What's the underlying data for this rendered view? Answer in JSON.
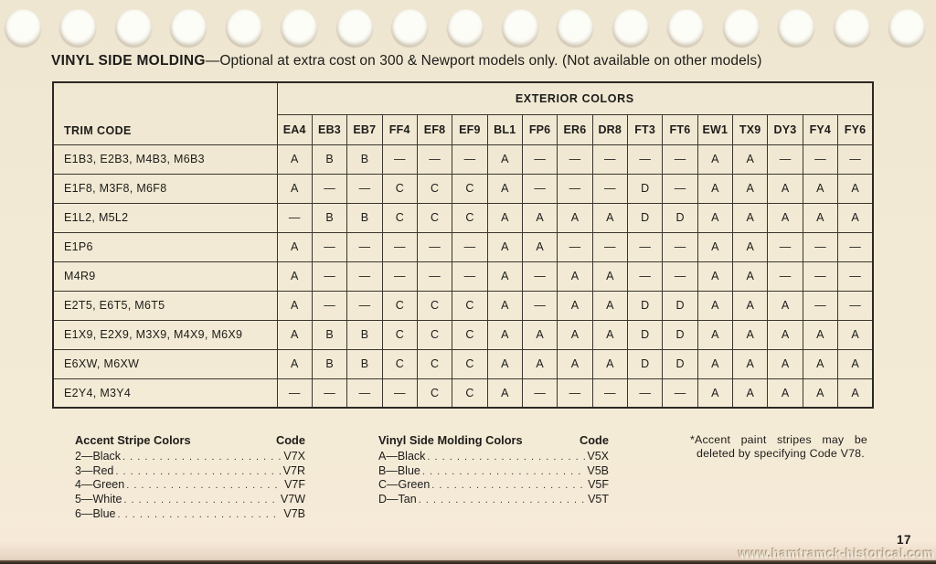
{
  "title": {
    "heading": "VINYL SIDE MOLDING",
    "rest": "—Optional at extra cost on 300 & Newport models only. (Not available on other models)"
  },
  "table": {
    "corner_header": "TRIM CODE",
    "group_header": "EXTERIOR COLORS",
    "columns": [
      "EA4",
      "EB3",
      "EB7",
      "FF4",
      "EF8",
      "EF9",
      "BL1",
      "FP6",
      "ER6",
      "DR8",
      "FT3",
      "FT6",
      "EW1",
      "TX9",
      "DY3",
      "FY4",
      "FY6"
    ],
    "rows": [
      {
        "trim": "E1B3, E2B3, M4B3, M6B3",
        "values": [
          "A",
          "B",
          "B",
          "—",
          "—",
          "—",
          "A",
          "—",
          "—",
          "—",
          "—",
          "—",
          "A",
          "A",
          "—",
          "—",
          "—"
        ]
      },
      {
        "trim": "E1F8, M3F8, M6F8",
        "values": [
          "A",
          "—",
          "—",
          "C",
          "C",
          "C",
          "A",
          "—",
          "—",
          "—",
          "D",
          "—",
          "A",
          "A",
          "A",
          "A",
          "A"
        ]
      },
      {
        "trim": "E1L2, M5L2",
        "values": [
          "—",
          "B",
          "B",
          "C",
          "C",
          "C",
          "A",
          "A",
          "A",
          "A",
          "D",
          "D",
          "A",
          "A",
          "A",
          "A",
          "A"
        ]
      },
      {
        "trim": "E1P6",
        "values": [
          "A",
          "—",
          "—",
          "—",
          "—",
          "—",
          "A",
          "A",
          "—",
          "—",
          "—",
          "—",
          "A",
          "A",
          "—",
          "—",
          "—"
        ]
      },
      {
        "trim": "M4R9",
        "values": [
          "A",
          "—",
          "—",
          "—",
          "—",
          "—",
          "A",
          "—",
          "A",
          "A",
          "—",
          "—",
          "A",
          "A",
          "—",
          "—",
          "—"
        ]
      },
      {
        "trim": "E2T5, E6T5, M6T5",
        "values": [
          "A",
          "—",
          "—",
          "C",
          "C",
          "C",
          "A",
          "—",
          "A",
          "A",
          "D",
          "D",
          "A",
          "A",
          "A",
          "—",
          "—"
        ]
      },
      {
        "trim": "E1X9, E2X9, M3X9, M4X9, M6X9",
        "values": [
          "A",
          "B",
          "B",
          "C",
          "C",
          "C",
          "A",
          "A",
          "A",
          "A",
          "D",
          "D",
          "A",
          "A",
          "A",
          "A",
          "A"
        ]
      },
      {
        "trim": "E6XW, M6XW",
        "values": [
          "A",
          "B",
          "B",
          "C",
          "C",
          "C",
          "A",
          "A",
          "A",
          "A",
          "D",
          "D",
          "A",
          "A",
          "A",
          "A",
          "A"
        ]
      },
      {
        "trim": "E2Y4, M3Y4",
        "values": [
          "—",
          "—",
          "—",
          "—",
          "C",
          "C",
          "A",
          "—",
          "—",
          "—",
          "—",
          "—",
          "A",
          "A",
          "A",
          "A",
          "A"
        ]
      }
    ]
  },
  "legends": [
    {
      "title": "Accent Stripe Colors",
      "code_header": "Code",
      "items": [
        {
          "name": "2—Black",
          "code": "V7X"
        },
        {
          "name": "3—Red",
          "code": "V7R"
        },
        {
          "name": "4—Green",
          "code": "V7F"
        },
        {
          "name": "5—White",
          "code": "V7W"
        },
        {
          "name": "6—Blue",
          "code": "V7B"
        }
      ]
    },
    {
      "title": "Vinyl Side Molding Colors",
      "code_header": "Code",
      "items": [
        {
          "name": "A—Black",
          "code": "V5X"
        },
        {
          "name": "B—Blue",
          "code": "V5B"
        },
        {
          "name": "C—Green",
          "code": "V5F"
        },
        {
          "name": "D—Tan",
          "code": "V5T"
        }
      ]
    }
  ],
  "footnote": "*Accent paint stripes may be deleted by specifying Code V78.",
  "page": {
    "number": "17",
    "watermark": "www.hamtramck-historical.com"
  },
  "colors": {
    "paper": "#f2ead4",
    "ink": "#1d1c1a",
    "grid_line": "#3a362f"
  }
}
